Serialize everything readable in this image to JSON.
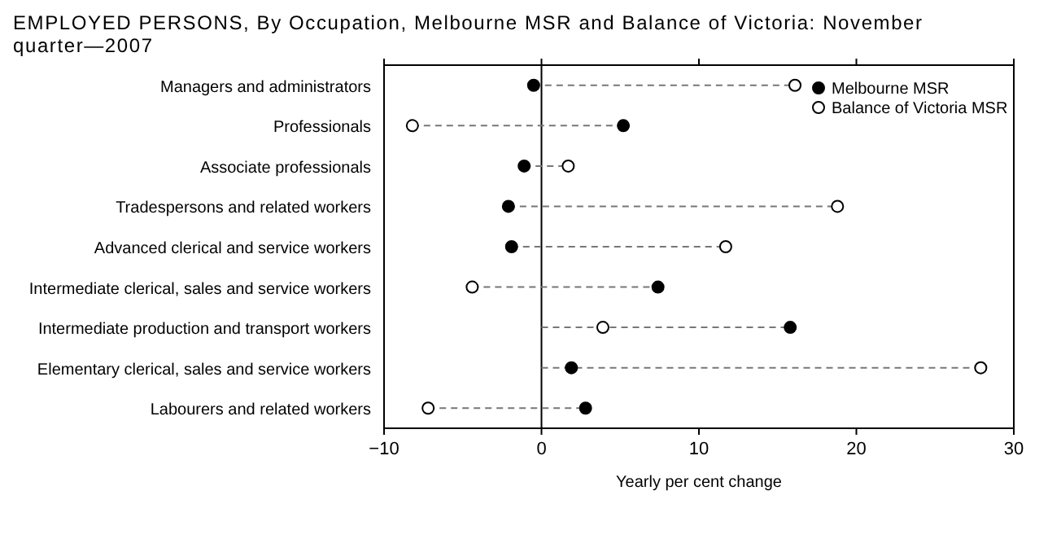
{
  "chart_data": {
    "type": "scatter",
    "orientation": "horizontal",
    "title": "EMPLOYED PERSONS, By Occupation, Melbourne MSR and Balance of Victoria: November quarter—2007",
    "xlabel": "Yearly per cent change",
    "categories": [
      "Managers and administrators",
      "Professionals",
      "Associate professionals",
      "Tradespersons and related workers",
      "Advanced clerical and service workers",
      "Intermediate clerical, sales and service workers",
      "Intermediate production and transport workers",
      "Elementary clerical, sales and service workers",
      "Labourers and related workers"
    ],
    "series": [
      {
        "name": "Melbourne MSR",
        "color": "#000000",
        "marker": "circle",
        "values": [
          -0.5,
          5.2,
          -1.1,
          -2.1,
          -1.9,
          7.4,
          15.8,
          1.9,
          2.8
        ]
      },
      {
        "name": "Balance of Victoria MSR",
        "color": "#ffffff",
        "marker": "circle",
        "values": [
          16.1,
          -8.2,
          1.7,
          18.8,
          11.7,
          -4.4,
          3.9,
          27.9,
          -7.2
        ]
      }
    ],
    "xlim": [
      -10,
      30
    ],
    "xticks": [
      -10,
      0,
      10,
      20,
      30
    ],
    "ref_lines": [
      {
        "axis": "x",
        "value": 0
      }
    ],
    "grid": false,
    "legend": "top right"
  }
}
